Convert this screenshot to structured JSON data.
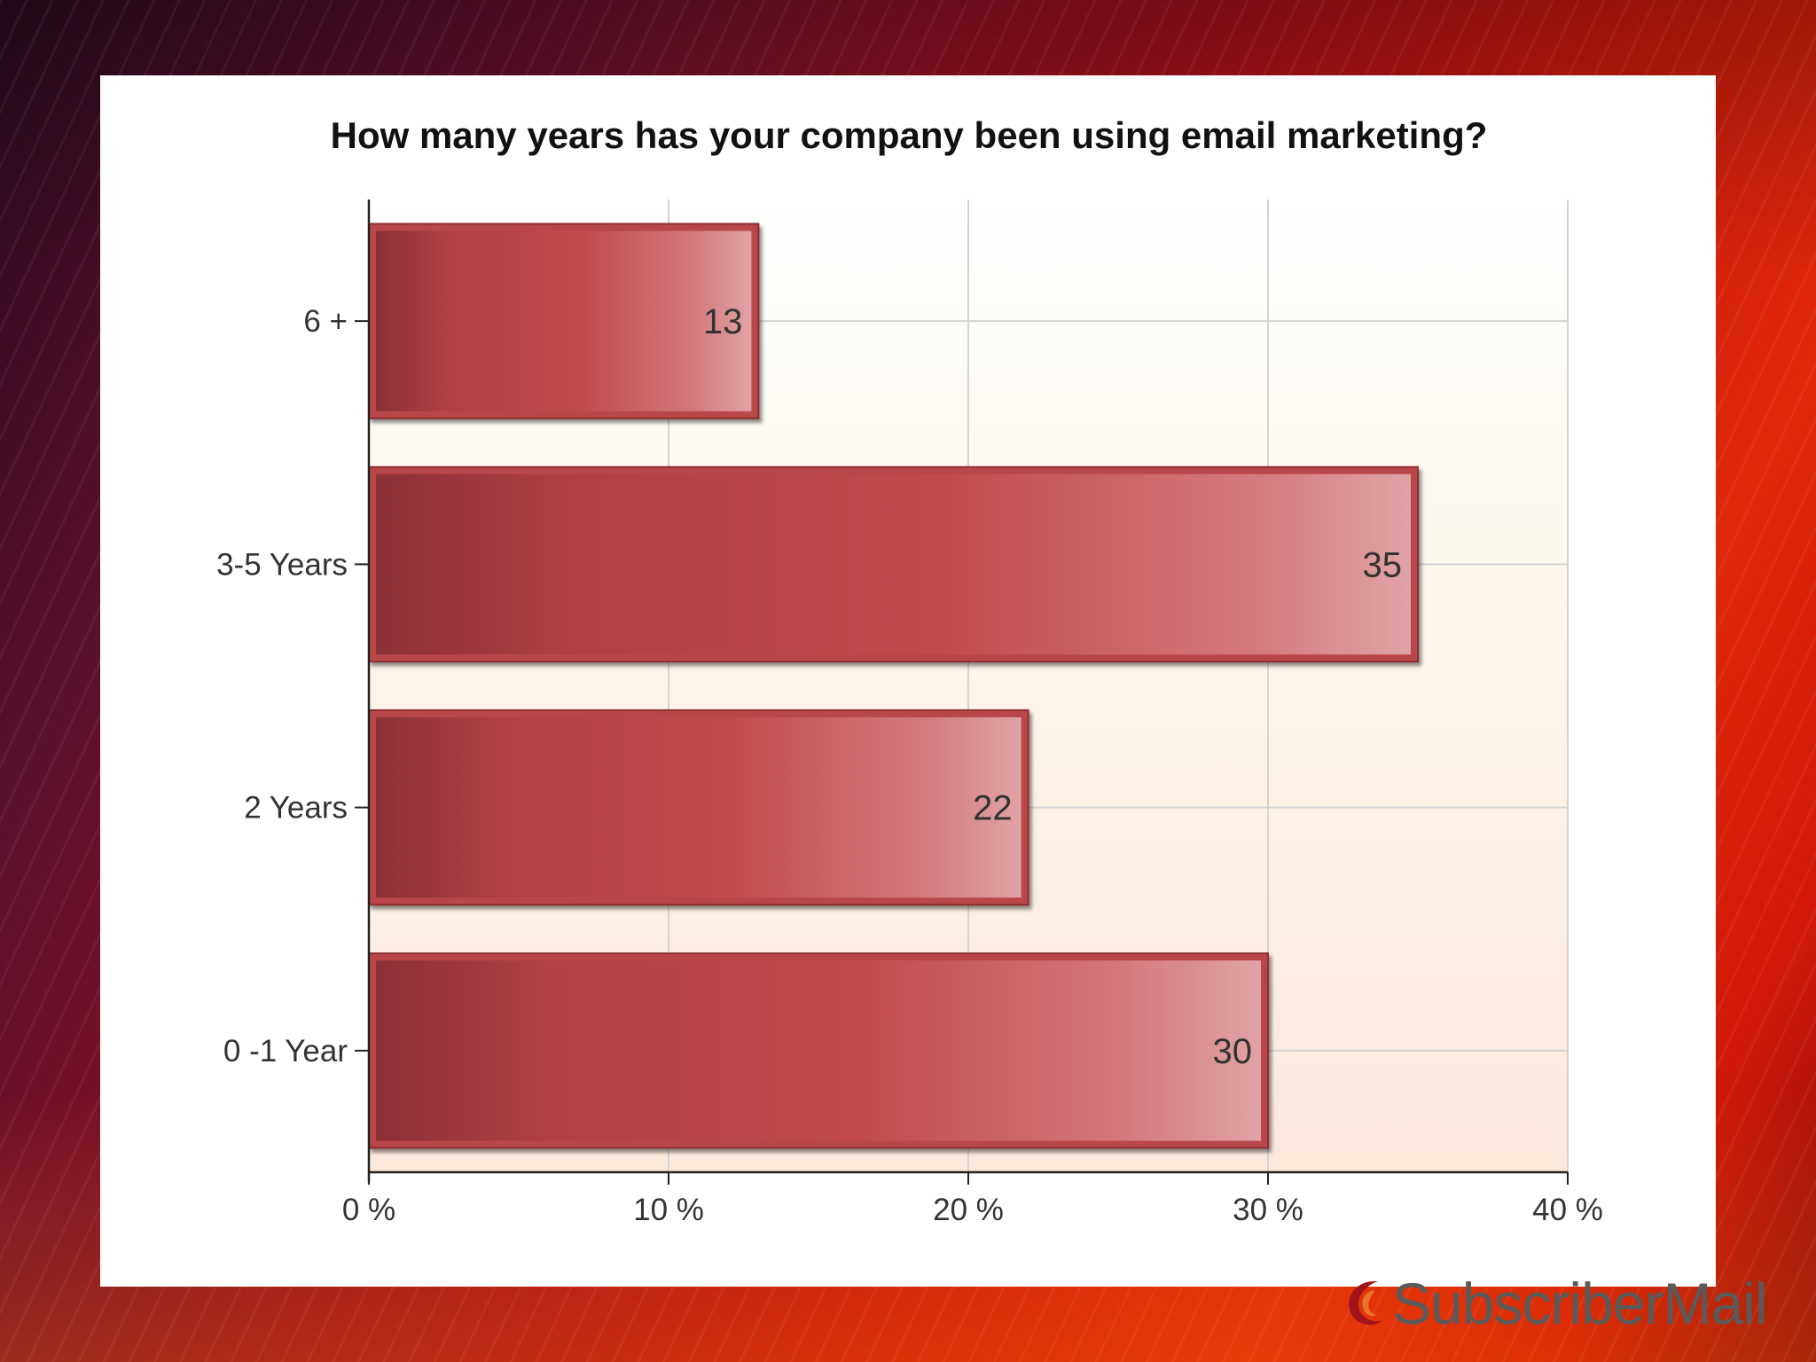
{
  "chart_data": {
    "type": "bar",
    "orientation": "horizontal",
    "title": "How many years has your company been using email marketing?",
    "categories": [
      "6 +",
      "3-5 Years",
      "2 Years",
      "0 -1 Year"
    ],
    "values": [
      13,
      35,
      22,
      30
    ],
    "data_labels": [
      "13",
      "35",
      "22",
      "30"
    ],
    "xlim": [
      0,
      40
    ],
    "x_ticks": [
      0,
      10,
      20,
      30,
      40
    ],
    "x_tick_labels": [
      "0 %",
      "10 %",
      "20 %",
      "30 %",
      "40 %"
    ],
    "xlabel": "",
    "ylabel": "",
    "grid": true,
    "bar_color": "#c0464a"
  },
  "logo": {
    "text": "SubscriberMail",
    "accent_color": "#a3131c"
  }
}
